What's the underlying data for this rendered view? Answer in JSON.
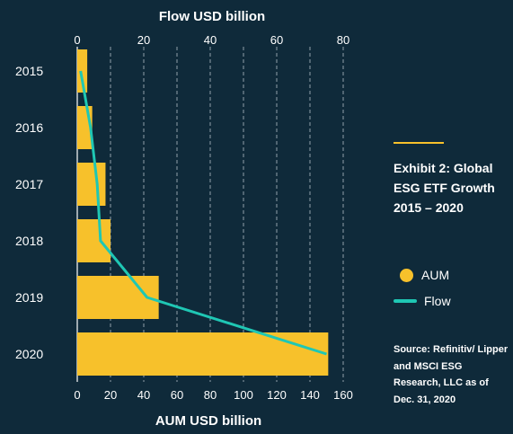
{
  "chart_data": {
    "type": "bar",
    "orientation": "horizontal",
    "categories": [
      "2015",
      "2016",
      "2017",
      "2018",
      "2019",
      "2020"
    ],
    "series": [
      {
        "name": "AUM",
        "type": "bar",
        "axis": "bottom",
        "color": "#f7c12b",
        "values": [
          6,
          9,
          17,
          20,
          49,
          151
        ]
      },
      {
        "name": "Flow",
        "type": "line",
        "axis": "top",
        "color": "#1fc7b4",
        "values": [
          1,
          4,
          6,
          7,
          21,
          75
        ]
      }
    ],
    "top_axis": {
      "label": "Flow USD billion",
      "min": 0,
      "max": 80,
      "ticks": [
        0,
        20,
        40,
        60,
        80
      ]
    },
    "bottom_axis": {
      "label": "AUM USD billion",
      "min": 0,
      "max": 160,
      "ticks": [
        0,
        20,
        40,
        60,
        80,
        100,
        120,
        140,
        160
      ]
    },
    "grid": "vertical dashed",
    "legend_position": "right"
  },
  "panel": {
    "title": "Exhibit 2:  Global ESG ETF Growth 2015 – 2020",
    "legend": [
      {
        "label": "AUM",
        "marker": "circle",
        "color": "#f7c12b"
      },
      {
        "label": "Flow",
        "marker": "line",
        "color": "#1fc7b4"
      }
    ],
    "source": "Source: Refinitiv/ Lipper and MSCI ESG Research, LLC as of Dec. 31, 2020"
  }
}
